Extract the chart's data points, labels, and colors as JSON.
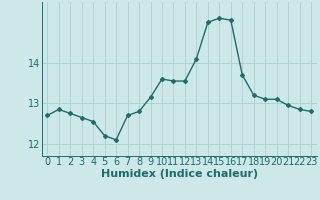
{
  "x": [
    0,
    1,
    2,
    3,
    4,
    5,
    6,
    7,
    8,
    9,
    10,
    11,
    12,
    13,
    14,
    15,
    16,
    17,
    18,
    19,
    20,
    21,
    22,
    23
  ],
  "y": [
    12.7,
    12.85,
    12.75,
    12.65,
    12.55,
    12.2,
    12.1,
    12.7,
    12.8,
    13.15,
    13.6,
    13.55,
    13.55,
    14.1,
    15.0,
    15.1,
    15.05,
    13.7,
    13.2,
    13.1,
    13.1,
    12.95,
    12.85,
    12.8
  ],
  "xlabel": "Humidex (Indice chaleur)",
  "yticks": [
    12,
    13,
    14
  ],
  "ylim": [
    11.7,
    15.5
  ],
  "xlim": [
    -0.5,
    23.5
  ],
  "bg_color": "#cce8e8",
  "line_color": "#226b6b",
  "grid_color": "#aacfcf",
  "xlabel_fontsize": 8,
  "tick_fontsize": 7,
  "marker": "D",
  "marker_size": 2.0,
  "linewidth": 1.0
}
